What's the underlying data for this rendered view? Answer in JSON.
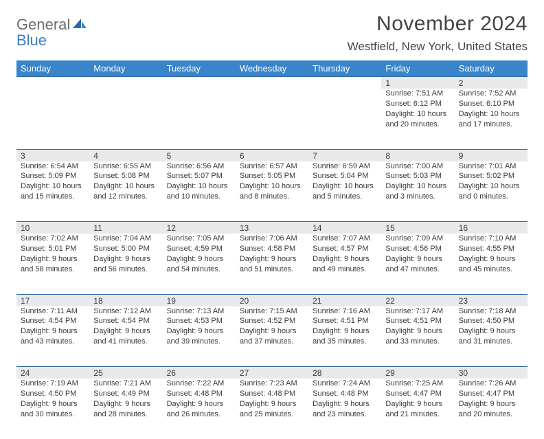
{
  "logo": {
    "text_top": "General",
    "text_bottom": "Blue"
  },
  "title": "November 2024",
  "location": "Westfield, New York, United States",
  "colors": {
    "header_bg": "#3a85c9",
    "header_text": "#ffffff",
    "spacer_bg": "#e8e9eb",
    "rule": "#2f6aa8",
    "body_text": "#3a3a3a",
    "logo_gray": "#6b6b6b",
    "logo_blue": "#3a7fc4"
  },
  "weekdays": [
    "Sunday",
    "Monday",
    "Tuesday",
    "Wednesday",
    "Thursday",
    "Friday",
    "Saturday"
  ],
  "weeks": [
    [
      null,
      null,
      null,
      null,
      null,
      {
        "n": "1",
        "sunrise": "Sunrise: 7:51 AM",
        "sunset": "Sunset: 6:12 PM",
        "daylight": "Daylight: 10 hours and 20 minutes."
      },
      {
        "n": "2",
        "sunrise": "Sunrise: 7:52 AM",
        "sunset": "Sunset: 6:10 PM",
        "daylight": "Daylight: 10 hours and 17 minutes."
      }
    ],
    [
      {
        "n": "3",
        "sunrise": "Sunrise: 6:54 AM",
        "sunset": "Sunset: 5:09 PM",
        "daylight": "Daylight: 10 hours and 15 minutes."
      },
      {
        "n": "4",
        "sunrise": "Sunrise: 6:55 AM",
        "sunset": "Sunset: 5:08 PM",
        "daylight": "Daylight: 10 hours and 12 minutes."
      },
      {
        "n": "5",
        "sunrise": "Sunrise: 6:56 AM",
        "sunset": "Sunset: 5:07 PM",
        "daylight": "Daylight: 10 hours and 10 minutes."
      },
      {
        "n": "6",
        "sunrise": "Sunrise: 6:57 AM",
        "sunset": "Sunset: 5:05 PM",
        "daylight": "Daylight: 10 hours and 8 minutes."
      },
      {
        "n": "7",
        "sunrise": "Sunrise: 6:59 AM",
        "sunset": "Sunset: 5:04 PM",
        "daylight": "Daylight: 10 hours and 5 minutes."
      },
      {
        "n": "8",
        "sunrise": "Sunrise: 7:00 AM",
        "sunset": "Sunset: 5:03 PM",
        "daylight": "Daylight: 10 hours and 3 minutes."
      },
      {
        "n": "9",
        "sunrise": "Sunrise: 7:01 AM",
        "sunset": "Sunset: 5:02 PM",
        "daylight": "Daylight: 10 hours and 0 minutes."
      }
    ],
    [
      {
        "n": "10",
        "sunrise": "Sunrise: 7:02 AM",
        "sunset": "Sunset: 5:01 PM",
        "daylight": "Daylight: 9 hours and 58 minutes."
      },
      {
        "n": "11",
        "sunrise": "Sunrise: 7:04 AM",
        "sunset": "Sunset: 5:00 PM",
        "daylight": "Daylight: 9 hours and 56 minutes."
      },
      {
        "n": "12",
        "sunrise": "Sunrise: 7:05 AM",
        "sunset": "Sunset: 4:59 PM",
        "daylight": "Daylight: 9 hours and 54 minutes."
      },
      {
        "n": "13",
        "sunrise": "Sunrise: 7:06 AM",
        "sunset": "Sunset: 4:58 PM",
        "daylight": "Daylight: 9 hours and 51 minutes."
      },
      {
        "n": "14",
        "sunrise": "Sunrise: 7:07 AM",
        "sunset": "Sunset: 4:57 PM",
        "daylight": "Daylight: 9 hours and 49 minutes."
      },
      {
        "n": "15",
        "sunrise": "Sunrise: 7:09 AM",
        "sunset": "Sunset: 4:56 PM",
        "daylight": "Daylight: 9 hours and 47 minutes."
      },
      {
        "n": "16",
        "sunrise": "Sunrise: 7:10 AM",
        "sunset": "Sunset: 4:55 PM",
        "daylight": "Daylight: 9 hours and 45 minutes."
      }
    ],
    [
      {
        "n": "17",
        "sunrise": "Sunrise: 7:11 AM",
        "sunset": "Sunset: 4:54 PM",
        "daylight": "Daylight: 9 hours and 43 minutes."
      },
      {
        "n": "18",
        "sunrise": "Sunrise: 7:12 AM",
        "sunset": "Sunset: 4:54 PM",
        "daylight": "Daylight: 9 hours and 41 minutes."
      },
      {
        "n": "19",
        "sunrise": "Sunrise: 7:13 AM",
        "sunset": "Sunset: 4:53 PM",
        "daylight": "Daylight: 9 hours and 39 minutes."
      },
      {
        "n": "20",
        "sunrise": "Sunrise: 7:15 AM",
        "sunset": "Sunset: 4:52 PM",
        "daylight": "Daylight: 9 hours and 37 minutes."
      },
      {
        "n": "21",
        "sunrise": "Sunrise: 7:16 AM",
        "sunset": "Sunset: 4:51 PM",
        "daylight": "Daylight: 9 hours and 35 minutes."
      },
      {
        "n": "22",
        "sunrise": "Sunrise: 7:17 AM",
        "sunset": "Sunset: 4:51 PM",
        "daylight": "Daylight: 9 hours and 33 minutes."
      },
      {
        "n": "23",
        "sunrise": "Sunrise: 7:18 AM",
        "sunset": "Sunset: 4:50 PM",
        "daylight": "Daylight: 9 hours and 31 minutes."
      }
    ],
    [
      {
        "n": "24",
        "sunrise": "Sunrise: 7:19 AM",
        "sunset": "Sunset: 4:50 PM",
        "daylight": "Daylight: 9 hours and 30 minutes."
      },
      {
        "n": "25",
        "sunrise": "Sunrise: 7:21 AM",
        "sunset": "Sunset: 4:49 PM",
        "daylight": "Daylight: 9 hours and 28 minutes."
      },
      {
        "n": "26",
        "sunrise": "Sunrise: 7:22 AM",
        "sunset": "Sunset: 4:48 PM",
        "daylight": "Daylight: 9 hours and 26 minutes."
      },
      {
        "n": "27",
        "sunrise": "Sunrise: 7:23 AM",
        "sunset": "Sunset: 4:48 PM",
        "daylight": "Daylight: 9 hours and 25 minutes."
      },
      {
        "n": "28",
        "sunrise": "Sunrise: 7:24 AM",
        "sunset": "Sunset: 4:48 PM",
        "daylight": "Daylight: 9 hours and 23 minutes."
      },
      {
        "n": "29",
        "sunrise": "Sunrise: 7:25 AM",
        "sunset": "Sunset: 4:47 PM",
        "daylight": "Daylight: 9 hours and 21 minutes."
      },
      {
        "n": "30",
        "sunrise": "Sunrise: 7:26 AM",
        "sunset": "Sunset: 4:47 PM",
        "daylight": "Daylight: 9 hours and 20 minutes."
      }
    ]
  ]
}
